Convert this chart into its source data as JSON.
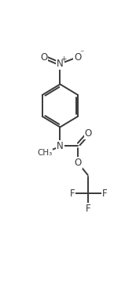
{
  "bg_color": "#ffffff",
  "line_color": "#3a3a3a",
  "line_width": 1.4,
  "font_size": 8.5,
  "fig_width": 1.59,
  "fig_height": 3.56,
  "dpi": 100,
  "xlim": [
    0,
    10
  ],
  "ylim": [
    0,
    22
  ]
}
